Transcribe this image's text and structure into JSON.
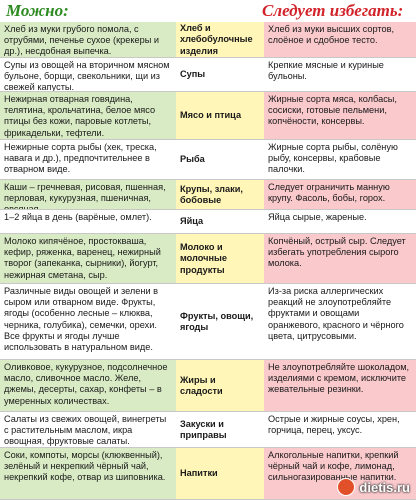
{
  "headers": {
    "allowed": "Можно:",
    "avoid": "Следует избегать:"
  },
  "rows": [
    {
      "allow": "Хлеб из муки грубого помола, с отрубями, печенье сухое (крекеры и др.), несдобная выпечка.",
      "category": "Хлеб и хлебобулочные изделия",
      "avoid": "Хлеб из муки высших сортов, слоёное и сдобное тесто."
    },
    {
      "allow": "Супы из овощей на вторичном мясном бульоне, борщи, свекольники, щи из свежей капусты.",
      "category": "Супы",
      "avoid": "Крепкие мясные и куриные бульоны."
    },
    {
      "allow": "Нежирная отварная говядина, телятина, крольчатина, белое мясо птицы без кожи, паровые котлеты, фрикадельки, тефтели.",
      "category": "Мясо и птица",
      "avoid": "Жирные сорта мяса, колбасы, сосиски, готовые пельмени, копчёности, консервы."
    },
    {
      "allow": "Нежирные сорта рыбы (хек, треска, навага и др.), предпочтительнее в отварном виде.",
      "category": "Рыба",
      "avoid": "Жирные сорта рыбы, солёную рыбу, консервы, крабовые палочки."
    },
    {
      "allow": "Каши – гречневая, рисовая, пшенная, перловая, кукурузная, пшеничная, овсяная.",
      "category": "Крупы, злаки, бобовые",
      "avoid": "Следует ограничить манную крупу. Фасоль, бобы, горох."
    },
    {
      "allow": "1–2 яйца в день (варёные, омлет).",
      "category": "Яйца",
      "avoid": "Яйца сырые, жареные."
    },
    {
      "allow": "Молоко кипячёное, простокваша, кефир, ряженка, варенец, нежирный творог (запеканка, сырники), йогурт, нежирная сметана, сыр.",
      "category": "Молоко и молочные продукты",
      "avoid": "Копчёный, острый сыр. Следует избегать употребления сырого молока."
    },
    {
      "allow": "Различные виды овощей и зелени в сыром или отварном виде. Фрукты, ягоды (особенно лесные – клюква, черника, голубика), семечки, орехи. Все фрукты и ягоды лучше использовать в натуральном виде.",
      "category": "Фрукты, овощи, ягоды",
      "avoid": "Из-за риска аллергических реакций не злоупотребляйте фруктами и овощами оранжевого, красного и чёрного цвета, цитрусовыми."
    },
    {
      "allow": "Оливковое, кукурузное, подсолнечное масло, сливочное масло. Желе, джемы, десерты, сахар, конфеты – в умеренных количествах.",
      "category": "Жиры и сладости",
      "avoid": "Не злоупотребляйте шоколадом, изделиями с кремом, исключите жевательные резинки."
    },
    {
      "allow": "Салаты из свежих овощей, винегреты с растительным маслом, икра овощная, фруктовые салаты.",
      "category": "Закуски и приправы",
      "avoid": "Острые и жирные соусы, хрен, горчица, перец, уксус."
    },
    {
      "allow": "Соки, компоты, морсы (клюквенный), зелёный и некрепкий чёрный чай, некрепкий кофе, отвар из шиповника.",
      "category": "Напитки",
      "avoid": "Алкогольные напитки, крепкий чёрный чай и кофе, лимонад, сильногазированные напитки."
    }
  ],
  "colors": {
    "allowed_header": "#2e8b22",
    "avoid_header": "#d2232a",
    "allow_bg": "#d9ebc4",
    "cat_bg": "#fff6b8",
    "avoid_bg": "#f9c9cc"
  },
  "watermark": "dietis.ru"
}
